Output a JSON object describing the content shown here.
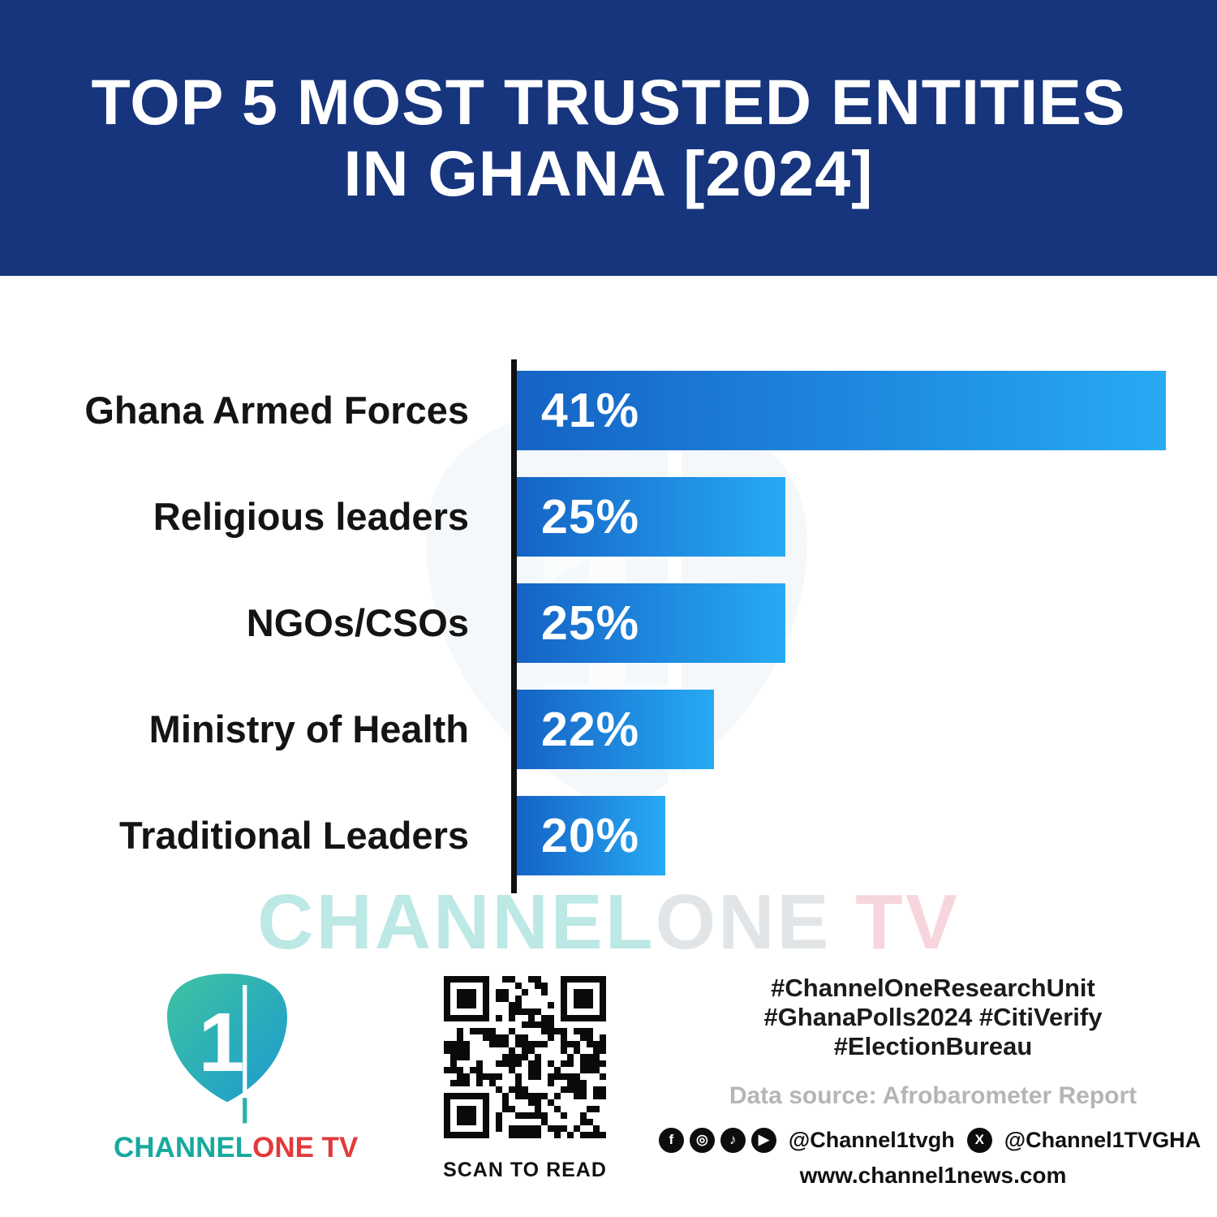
{
  "header": {
    "title_line1": "TOP 5 MOST TRUSTED ENTITIES",
    "title_line2": "IN GHANA [2024]"
  },
  "chart_data": {
    "type": "bar",
    "orientation": "horizontal",
    "title": "Top 5 Most Trusted Entities in Ghana [2024]",
    "categories": [
      "Ghana Armed Forces",
      "Religious leaders",
      "NGOs/CSOs",
      "Ministry of Health",
      "Traditional Leaders"
    ],
    "values": [
      41,
      25,
      25,
      22,
      20
    ],
    "value_labels": [
      "41%",
      "25%",
      "25%",
      "22%",
      "20%"
    ],
    "xlabel": "",
    "ylabel": "",
    "bar_widths_pct": [
      100,
      41.4,
      41.4,
      30.4,
      22.9
    ],
    "bar_gradient_start": "#1563c5",
    "bar_gradient_end": "#27aaf4",
    "axis_color": "#101010",
    "grid": false,
    "legend": false
  },
  "watermark": {
    "channel": "CHANNEL",
    "one": "ONE",
    "tv": "TV"
  },
  "footer": {
    "logo": {
      "numeral": "1",
      "channel": "CHANNEL",
      "onetv": "ONE TV"
    },
    "qr_caption": "SCAN TO READ",
    "hashtags_line1": "#ChannelOneResearchUnit",
    "hashtags_line2": "#GhanaPolls2024 #CitiVerify",
    "hashtags_line3": "#ElectionBureau",
    "data_source": "Data source: Afrobarometer Report",
    "social_handle1": "@Channel1tvgh",
    "social_handle2": "@Channel1TVGHA",
    "website": "www.channel1news.com",
    "facebook_glyph": "f",
    "instagram_glyph": "◎",
    "tiktok_glyph": "♪",
    "youtube_glyph": "▶",
    "x_glyph": "X"
  },
  "colors": {
    "header_bg": "#17357d",
    "logo_teal": "#17a99e",
    "logo_red": "#e23a3c",
    "text_dark": "#141414",
    "muted_gray": "#b5b5b5"
  }
}
